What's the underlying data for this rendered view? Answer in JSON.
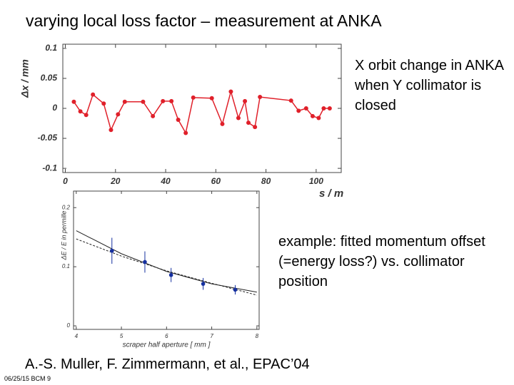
{
  "title": "varying local loss factor – measurement at ANKA",
  "captions": [
    "X orbit change in ANKA when Y collimator is closed",
    "example: fitted momentum offset (=energy loss?) vs. collimator position"
  ],
  "citation": "A.-S. Muller, F. Zimmermann, et al., EPAC’04",
  "footer": "06/25/15 BCM 9",
  "chart_data": [
    {
      "type": "line",
      "xlabel": "s  / m",
      "ylabel": "Δx / mm",
      "color": "#e0202a",
      "marker": true,
      "x": [
        3.4,
        6,
        8.3,
        11,
        15.3,
        18.2,
        21,
        23.7,
        31,
        34.9,
        38.9,
        42.3,
        45,
        48,
        51,
        58.4,
        62.6,
        66,
        69,
        71.6,
        73,
        75.6,
        77.6,
        90,
        93,
        96,
        98.6,
        101,
        103,
        105.4
      ],
      "values": [
        0.011,
        -0.005,
        -0.011,
        0.023,
        0.008,
        -0.036,
        -0.01,
        0.011,
        0.011,
        -0.013,
        0.012,
        0.012,
        -0.019,
        -0.041,
        0.018,
        0.017,
        -0.026,
        0.028,
        -0.016,
        0.012,
        -0.024,
        -0.031,
        0.019,
        0.013,
        -0.004,
        0,
        -0.013,
        -0.016,
        0,
        0
      ],
      "xlim": [
        -1,
        110
      ],
      "ylim": [
        -0.107,
        0.107
      ],
      "xticks": [
        0,
        20,
        40,
        60,
        80,
        100
      ],
      "yticks": [
        -0.1,
        -0.05,
        0,
        0.05,
        0.1
      ]
    },
    {
      "type": "errorbar",
      "xlabel": "scraper half aperture [ mm ]",
      "ylabel": "ΔE / E in permille",
      "color": "#1530a0",
      "x": [
        4.79,
        5.52,
        6.1,
        6.81,
        7.52
      ],
      "values": [
        0.127,
        0.108,
        0.086,
        0.071,
        0.061
      ],
      "errors": [
        0.022,
        0.018,
        0.012,
        0.01,
        0.008
      ],
      "fits": [
        {
          "x": [
            4,
            5,
            6,
            7,
            8
          ],
          "values": [
            0.161,
            0.122,
            0.092,
            0.071,
            0.057
          ],
          "color": "#222",
          "dash": false
        },
        {
          "x": [
            4,
            5,
            6,
            7,
            8
          ],
          "values": [
            0.147,
            0.118,
            0.093,
            0.072,
            0.052
          ],
          "color": "#222",
          "dash": true
        }
      ],
      "xlim": [
        3.94,
        8.05
      ],
      "ylim": [
        -0.006,
        0.228
      ],
      "xticks": [
        4,
        5,
        6,
        7,
        8
      ],
      "yticks": [
        0,
        0.1,
        0.2
      ]
    }
  ]
}
